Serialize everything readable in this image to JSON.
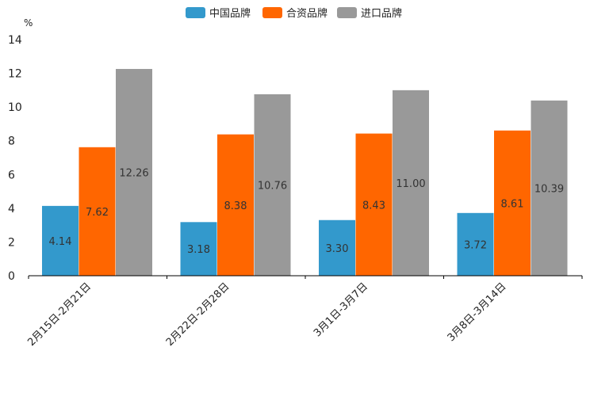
{
  "chart_data": {
    "type": "bar",
    "unit": "%",
    "categories": [
      "2月15日-2月21日",
      "2月22日-2月28日",
      "3月1日-3月7日",
      "3月8日-3月14日"
    ],
    "series": [
      {
        "name": "中国品牌",
        "color": "#3399cc",
        "values": [
          4.14,
          3.18,
          3.3,
          3.72
        ],
        "labels": [
          "4.14",
          "3.18",
          "3.30",
          "3.72"
        ]
      },
      {
        "name": "合资品牌",
        "color": "#ff6600",
        "values": [
          7.62,
          8.38,
          8.43,
          8.61
        ],
        "labels": [
          "7.62",
          "8.38",
          "8.43",
          "8.61"
        ]
      },
      {
        "name": "进口品牌",
        "color": "#999999",
        "values": [
          12.26,
          10.76,
          11.0,
          10.39
        ],
        "labels": [
          "12.26",
          "10.76",
          "11.00",
          "10.39"
        ]
      }
    ],
    "ylim": [
      0,
      14
    ],
    "yticks": [
      0,
      2,
      4,
      6,
      8,
      10,
      12,
      14
    ],
    "legend_position": "top-center",
    "grid": false
  }
}
